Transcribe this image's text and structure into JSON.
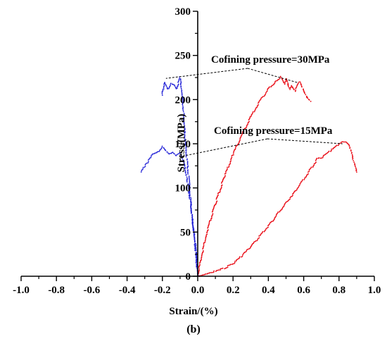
{
  "chart_data": {
    "type": "scatter",
    "panel_label": "(b)",
    "xlabel": "Strain/(%)",
    "ylabel": "Stress/(MPa)",
    "xlim": [
      -1.0,
      1.0
    ],
    "ylim": [
      0,
      300
    ],
    "x_ticks": [
      "-1.0",
      "-0.8",
      "-0.6",
      "-0.4",
      "-0.2",
      "0.0",
      "0.2",
      "0.4",
      "0.6",
      "0.8",
      "1.0"
    ],
    "y_ticks": [
      "0",
      "50",
      "100",
      "150",
      "200",
      "250",
      "300"
    ],
    "grid": false,
    "colors": {
      "axial_strain": "#e8000b",
      "lateral_strain": "#1f1fd6",
      "leader_line": "#000000"
    },
    "annotations": [
      {
        "text": "Cofining pressure=30MPa",
        "points_to": [
          [
            -0.18,
            224
          ],
          [
            0.57,
            219
          ]
        ]
      },
      {
        "text": "Cofining pressure=15MPa",
        "points_to": [
          [
            -0.11,
            135
          ],
          [
            0.82,
            150
          ]
        ]
      }
    ],
    "series": [
      {
        "color_key": "axial_strain",
        "group": "30MPa",
        "x": [
          0.0,
          0.02,
          0.05,
          0.1,
          0.15,
          0.2,
          0.25,
          0.3,
          0.35,
          0.4,
          0.44,
          0.47,
          0.49,
          0.5,
          0.52,
          0.53,
          0.55,
          0.57,
          0.58,
          0.6,
          0.62,
          0.64
        ],
        "y": [
          0,
          22,
          48,
          82,
          112,
          138,
          160,
          180,
          198,
          212,
          220,
          226,
          218,
          224,
          212,
          216,
          210,
          218,
          220,
          210,
          202,
          198
        ]
      },
      {
        "color_key": "axial_strain",
        "group": "15MPa",
        "x": [
          0.0,
          0.05,
          0.1,
          0.15,
          0.2,
          0.25,
          0.3,
          0.35,
          0.4,
          0.45,
          0.5,
          0.55,
          0.6,
          0.65,
          0.68,
          0.7,
          0.75,
          0.8,
          0.82,
          0.84,
          0.86,
          0.88,
          0.9
        ],
        "y": [
          0,
          3,
          6,
          9,
          14,
          23,
          33,
          45,
          57,
          70,
          83,
          96,
          110,
          124,
          134,
          134,
          142,
          149,
          152,
          152,
          148,
          132,
          118
        ]
      },
      {
        "color_key": "lateral_strain",
        "group": "30MPa",
        "x": [
          0.0,
          -0.01,
          -0.03,
          -0.05,
          -0.07,
          -0.08,
          -0.09,
          -0.1,
          -0.12,
          -0.13,
          -0.15,
          -0.17,
          -0.19,
          -0.2
        ],
        "y": [
          0,
          30,
          65,
          110,
          150,
          185,
          210,
          225,
          212,
          216,
          218,
          212,
          220,
          205
        ]
      },
      {
        "color_key": "lateral_strain",
        "group": "15MPa",
        "x": [
          0.0,
          -0.01,
          -0.02,
          -0.04,
          -0.06,
          -0.08,
          -0.1,
          -0.12,
          -0.14,
          -0.16,
          -0.18,
          -0.2,
          -0.22,
          -0.24,
          -0.26,
          -0.28,
          -0.3,
          -0.32
        ],
        "y": [
          0,
          20,
          45,
          82,
          110,
          130,
          140,
          136,
          140,
          138,
          142,
          147,
          142,
          140,
          138,
          130,
          125,
          118
        ]
      }
    ]
  }
}
